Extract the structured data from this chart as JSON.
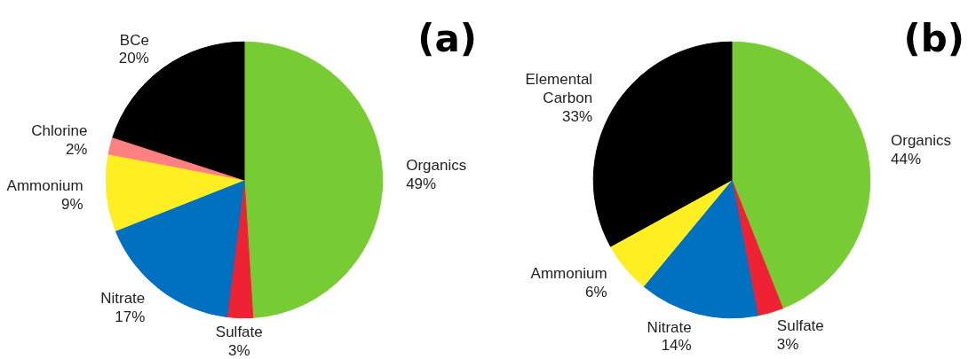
{
  "chart_data": [
    {
      "type": "pie",
      "title": "(a)",
      "categories": [
        "Organics",
        "Sulfate",
        "Nitrate",
        "Ammonium",
        "Chlorine",
        "BCe"
      ],
      "values": [
        49,
        3,
        17,
        9,
        2,
        20
      ],
      "value_labels": [
        "49%",
        "3%",
        "17%",
        "9%",
        "2%",
        "20%"
      ],
      "colors": [
        "#77cc33",
        "#ee2233",
        "#0070c0",
        "#ffee22",
        "#ff8080",
        "#000000"
      ]
    },
    {
      "type": "pie",
      "title": "(b)",
      "categories": [
        "Organics",
        "Sulfate",
        "Nitrate",
        "Ammonium",
        "Elemental Carbon"
      ],
      "values": [
        44,
        3,
        14,
        6,
        33
      ],
      "value_labels": [
        "44%",
        "3%",
        "14%",
        "6%",
        "33%"
      ],
      "colors": [
        "#77cc33",
        "#ee2233",
        "#0070c0",
        "#ffee22",
        "#000000"
      ]
    }
  ]
}
